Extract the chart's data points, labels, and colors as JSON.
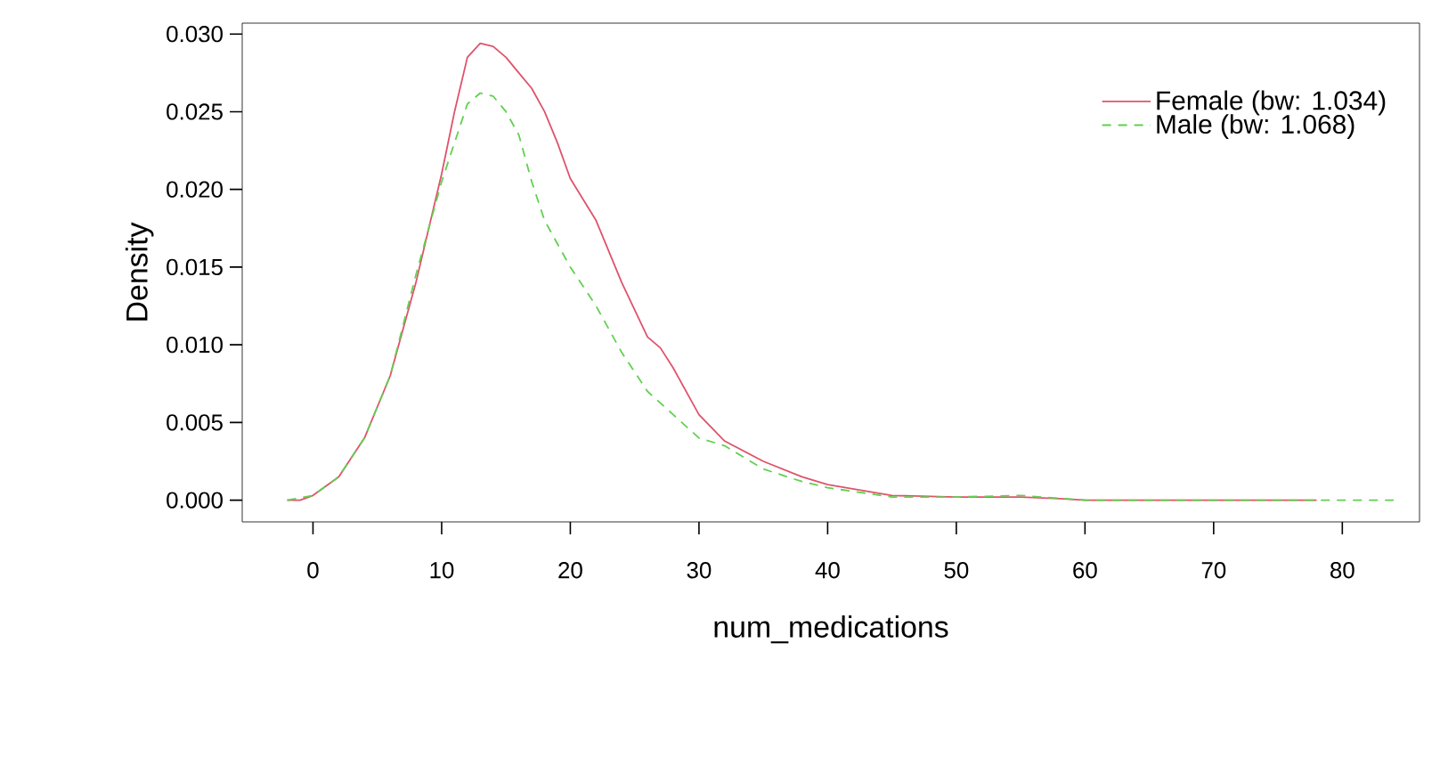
{
  "chart_data": {
    "type": "line",
    "xlabel": "num_medications",
    "ylabel": "Density",
    "xlim": [
      -5.5,
      86
    ],
    "ylim": [
      -0.0014,
      0.0307
    ],
    "xticks": [
      0,
      10,
      20,
      30,
      40,
      50,
      60,
      70,
      80
    ],
    "yticks": [
      {
        "value": 0,
        "label": "0.000"
      },
      {
        "value": 0.005,
        "label": "0.005"
      },
      {
        "value": 0.01,
        "label": "0.010"
      },
      {
        "value": 0.015,
        "label": "0.015"
      },
      {
        "value": 0.02,
        "label": "0.020"
      },
      {
        "value": 0.025,
        "label": "0.025"
      },
      {
        "value": 0.03,
        "label": "0.030"
      }
    ],
    "legend": "top right",
    "grid": false,
    "marker": "none",
    "series": [
      {
        "name": "Female (bw: 1.034)",
        "color": "#df536b",
        "line_style": "solid",
        "x": [
          -2,
          -1,
          0,
          2,
          4,
          6,
          8,
          10,
          11,
          12,
          13,
          14,
          15,
          16,
          17,
          18,
          19,
          20,
          22,
          24,
          26,
          27,
          28,
          30,
          32,
          35,
          38,
          40,
          45,
          50,
          55,
          58,
          60,
          70,
          78
        ],
        "values": [
          0,
          0,
          0.0003,
          0.0015,
          0.004,
          0.008,
          0.014,
          0.021,
          0.025,
          0.0285,
          0.0294,
          0.0292,
          0.0285,
          0.0275,
          0.0265,
          0.025,
          0.023,
          0.0207,
          0.018,
          0.014,
          0.0105,
          0.0098,
          0.0085,
          0.0055,
          0.0038,
          0.0025,
          0.0015,
          0.001,
          0.0003,
          0.0002,
          0.0002,
          0.0001,
          0,
          0,
          0
        ]
      },
      {
        "name": "Male (bw: 1.068)",
        "color": "#61d04f",
        "line_style": "dashed",
        "x": [
          -2,
          0,
          2,
          4,
          6,
          8,
          10,
          11,
          12,
          13,
          14,
          15,
          16,
          17,
          18,
          20,
          22,
          24,
          26,
          28,
          30,
          32,
          35,
          38,
          40,
          45,
          50,
          55,
          60,
          70,
          84
        ],
        "values": [
          0,
          0.0003,
          0.0015,
          0.004,
          0.008,
          0.0145,
          0.0205,
          0.023,
          0.0255,
          0.0262,
          0.026,
          0.025,
          0.0235,
          0.0205,
          0.018,
          0.015,
          0.0125,
          0.0095,
          0.007,
          0.0055,
          0.004,
          0.0035,
          0.002,
          0.0012,
          0.0008,
          0.0002,
          0.0002,
          0.0003,
          0,
          0,
          0
        ]
      }
    ]
  }
}
